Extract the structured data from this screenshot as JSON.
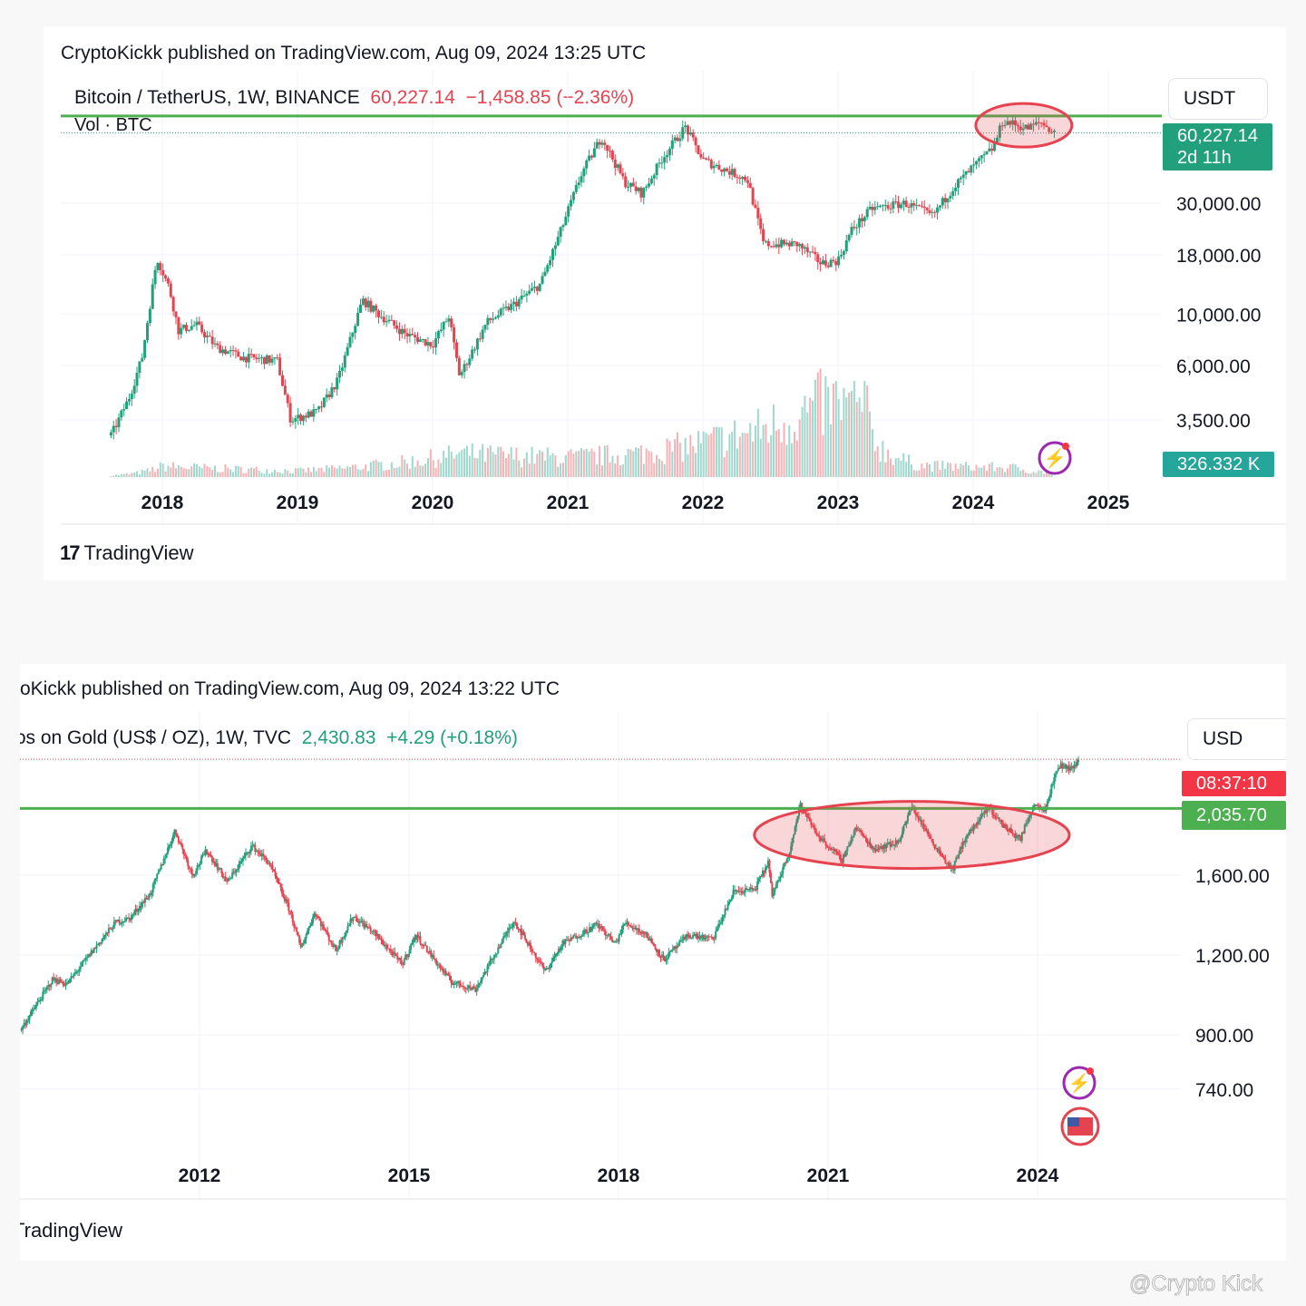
{
  "btc": {
    "published": "CryptoKickk published on TradingView.com, Aug 09, 2024 13:25 UTC",
    "symbol": "Bitcoin / TetherUS, 1W, BINANCE",
    "price": "60,227.14",
    "change": "−1,458.85 (−2.36%)",
    "volume_label": "Vol · BTC",
    "currency": "USDT",
    "price_tag": "60,227.14",
    "countdown": "2d 11h",
    "volume_tag": "326.332 K",
    "logo": "TradingView",
    "colors": {
      "up": "#22a07b",
      "down": "#e5434f",
      "resistance": "#4caf50",
      "highlight": "#e5434f"
    }
  },
  "gold": {
    "published": "oKickk published on TradingView.com, Aug 09, 2024 13:22 UTC",
    "symbol": "ɔs on Gold (US$ / OZ), 1W, TVC",
    "price": "2,430.83",
    "change": "+4.29 (+0.18%)",
    "currency": "USD",
    "countdown_tag": "08:37:10",
    "level_tag": "2,035.70",
    "logo": "TradingView"
  },
  "watermark": "@Crypto Kick",
  "chart_data": [
    {
      "type": "candlestick",
      "title": "Bitcoin / TetherUS, 1W, BINANCE",
      "scale": "log",
      "ylim": [
        2500,
        75000
      ],
      "yticks": [
        "3,500.00",
        "6,000.00",
        "10,000.00",
        "18,000.00",
        "30,000.00"
      ],
      "ytick_values": [
        3500,
        6000,
        10000,
        18000,
        30000
      ],
      "xticks": [
        "2018",
        "2019",
        "2020",
        "2021",
        "2022",
        "2023",
        "2024",
        "2025"
      ],
      "xlim": [
        2017.25,
        2025.5
      ],
      "grid": true,
      "resistance_line": 71300,
      "last_price": 60227.14,
      "highlight_zone": {
        "from": 2024.1,
        "to": 2024.65,
        "level": 65000
      },
      "price_path": [
        [
          2017.62,
          3000
        ],
        [
          2017.75,
          4300
        ],
        [
          2017.85,
          6500
        ],
        [
          2017.96,
          17500
        ],
        [
          2018.05,
          13000
        ],
        [
          2018.12,
          8500
        ],
        [
          2018.25,
          9000
        ],
        [
          2018.4,
          7200
        ],
        [
          2018.6,
          6500
        ],
        [
          2018.85,
          6300
        ],
        [
          2018.95,
          3500
        ],
        [
          2019.15,
          3800
        ],
        [
          2019.3,
          5200
        ],
        [
          2019.48,
          11500
        ],
        [
          2019.6,
          10000
        ],
        [
          2019.8,
          8200
        ],
        [
          2020.0,
          7400
        ],
        [
          2020.12,
          9800
        ],
        [
          2020.2,
          5400
        ],
        [
          2020.4,
          9200
        ],
        [
          2020.6,
          11000
        ],
        [
          2020.8,
          13500
        ],
        [
          2020.95,
          23000
        ],
        [
          2021.1,
          40000
        ],
        [
          2021.25,
          58000
        ],
        [
          2021.42,
          37000
        ],
        [
          2021.55,
          33000
        ],
        [
          2021.7,
          47000
        ],
        [
          2021.87,
          64000
        ],
        [
          2022.0,
          46000
        ],
        [
          2022.2,
          41000
        ],
        [
          2022.33,
          38000
        ],
        [
          2022.45,
          20000
        ],
        [
          2022.7,
          20000
        ],
        [
          2022.88,
          16500
        ],
        [
          2023.0,
          17000
        ],
        [
          2023.1,
          23000
        ],
        [
          2023.25,
          28500
        ],
        [
          2023.5,
          30000
        ],
        [
          2023.7,
          26500
        ],
        [
          2023.85,
          35000
        ],
        [
          2024.0,
          43000
        ],
        [
          2024.15,
          52000
        ],
        [
          2024.22,
          68000
        ],
        [
          2024.4,
          63000
        ],
        [
          2024.5,
          67000
        ],
        [
          2024.6,
          60227
        ]
      ],
      "volume_path": [
        [
          2017.62,
          2
        ],
        [
          2018.0,
          14
        ],
        [
          2019.0,
          8
        ],
        [
          2020.2,
          30
        ],
        [
          2021.0,
          25
        ],
        [
          2021.5,
          30
        ],
        [
          2022.4,
          60
        ],
        [
          2022.9,
          95
        ],
        [
          2023.2,
          90
        ],
        [
          2023.3,
          40
        ],
        [
          2023.6,
          15
        ],
        [
          2024.3,
          12
        ],
        [
          2024.6,
          5
        ]
      ]
    },
    {
      "type": "candlestick",
      "title": "Gold (US$ / OZ), 1W, TVC",
      "scale": "log",
      "ylim": [
        620,
        2700
      ],
      "yticks": [
        "1,600.00",
        "1,200.00",
        "900.00",
        "740.00"
      ],
      "ytick_values": [
        1600,
        1200,
        900,
        740
      ],
      "xticks": [
        "2012",
        "2015",
        "2018",
        "2021",
        "2024"
      ],
      "xlim": [
        2009.4,
        2025.5
      ],
      "grid": true,
      "resistance_line": 2035.7,
      "last_price": 2430.83,
      "highlight_zone": {
        "from": 2020.4,
        "to": 2024.0,
        "level": 1850
      },
      "price_path": [
        [
          2009.45,
          920
        ],
        [
          2009.9,
          1100
        ],
        [
          2010.1,
          1080
        ],
        [
          2010.5,
          1230
        ],
        [
          2010.8,
          1350
        ],
        [
          2011.0,
          1370
        ],
        [
          2011.3,
          1500
        ],
        [
          2011.65,
          1880
        ],
        [
          2011.9,
          1600
        ],
        [
          2012.1,
          1750
        ],
        [
          2012.4,
          1560
        ],
        [
          2012.75,
          1780
        ],
        [
          2013.0,
          1670
        ],
        [
          2013.3,
          1400
        ],
        [
          2013.45,
          1230
        ],
        [
          2013.65,
          1400
        ],
        [
          2013.95,
          1220
        ],
        [
          2014.2,
          1380
        ],
        [
          2014.5,
          1300
        ],
        [
          2014.9,
          1160
        ],
        [
          2015.1,
          1290
        ],
        [
          2015.6,
          1090
        ],
        [
          2015.95,
          1060
        ],
        [
          2016.5,
          1360
        ],
        [
          2016.95,
          1130
        ],
        [
          2017.2,
          1250
        ],
        [
          2017.7,
          1340
        ],
        [
          2017.95,
          1250
        ],
        [
          2018.1,
          1350
        ],
        [
          2018.4,
          1290
        ],
        [
          2018.65,
          1180
        ],
        [
          2019.0,
          1290
        ],
        [
          2019.35,
          1270
        ],
        [
          2019.65,
          1510
        ],
        [
          2019.95,
          1520
        ],
        [
          2020.15,
          1680
        ],
        [
          2020.2,
          1480
        ],
        [
          2020.45,
          1750
        ],
        [
          2020.6,
          2060
        ],
        [
          2020.85,
          1850
        ],
        [
          2021.2,
          1690
        ],
        [
          2021.4,
          1900
        ],
        [
          2021.65,
          1760
        ],
        [
          2022.0,
          1800
        ],
        [
          2022.2,
          2050
        ],
        [
          2022.5,
          1800
        ],
        [
          2022.78,
          1630
        ],
        [
          2022.95,
          1820
        ],
        [
          2023.3,
          2040
        ],
        [
          2023.5,
          1920
        ],
        [
          2023.75,
          1820
        ],
        [
          2023.95,
          2070
        ],
        [
          2024.1,
          2030
        ],
        [
          2024.3,
          2380
        ],
        [
          2024.5,
          2350
        ],
        [
          2024.6,
          2430
        ]
      ]
    }
  ]
}
